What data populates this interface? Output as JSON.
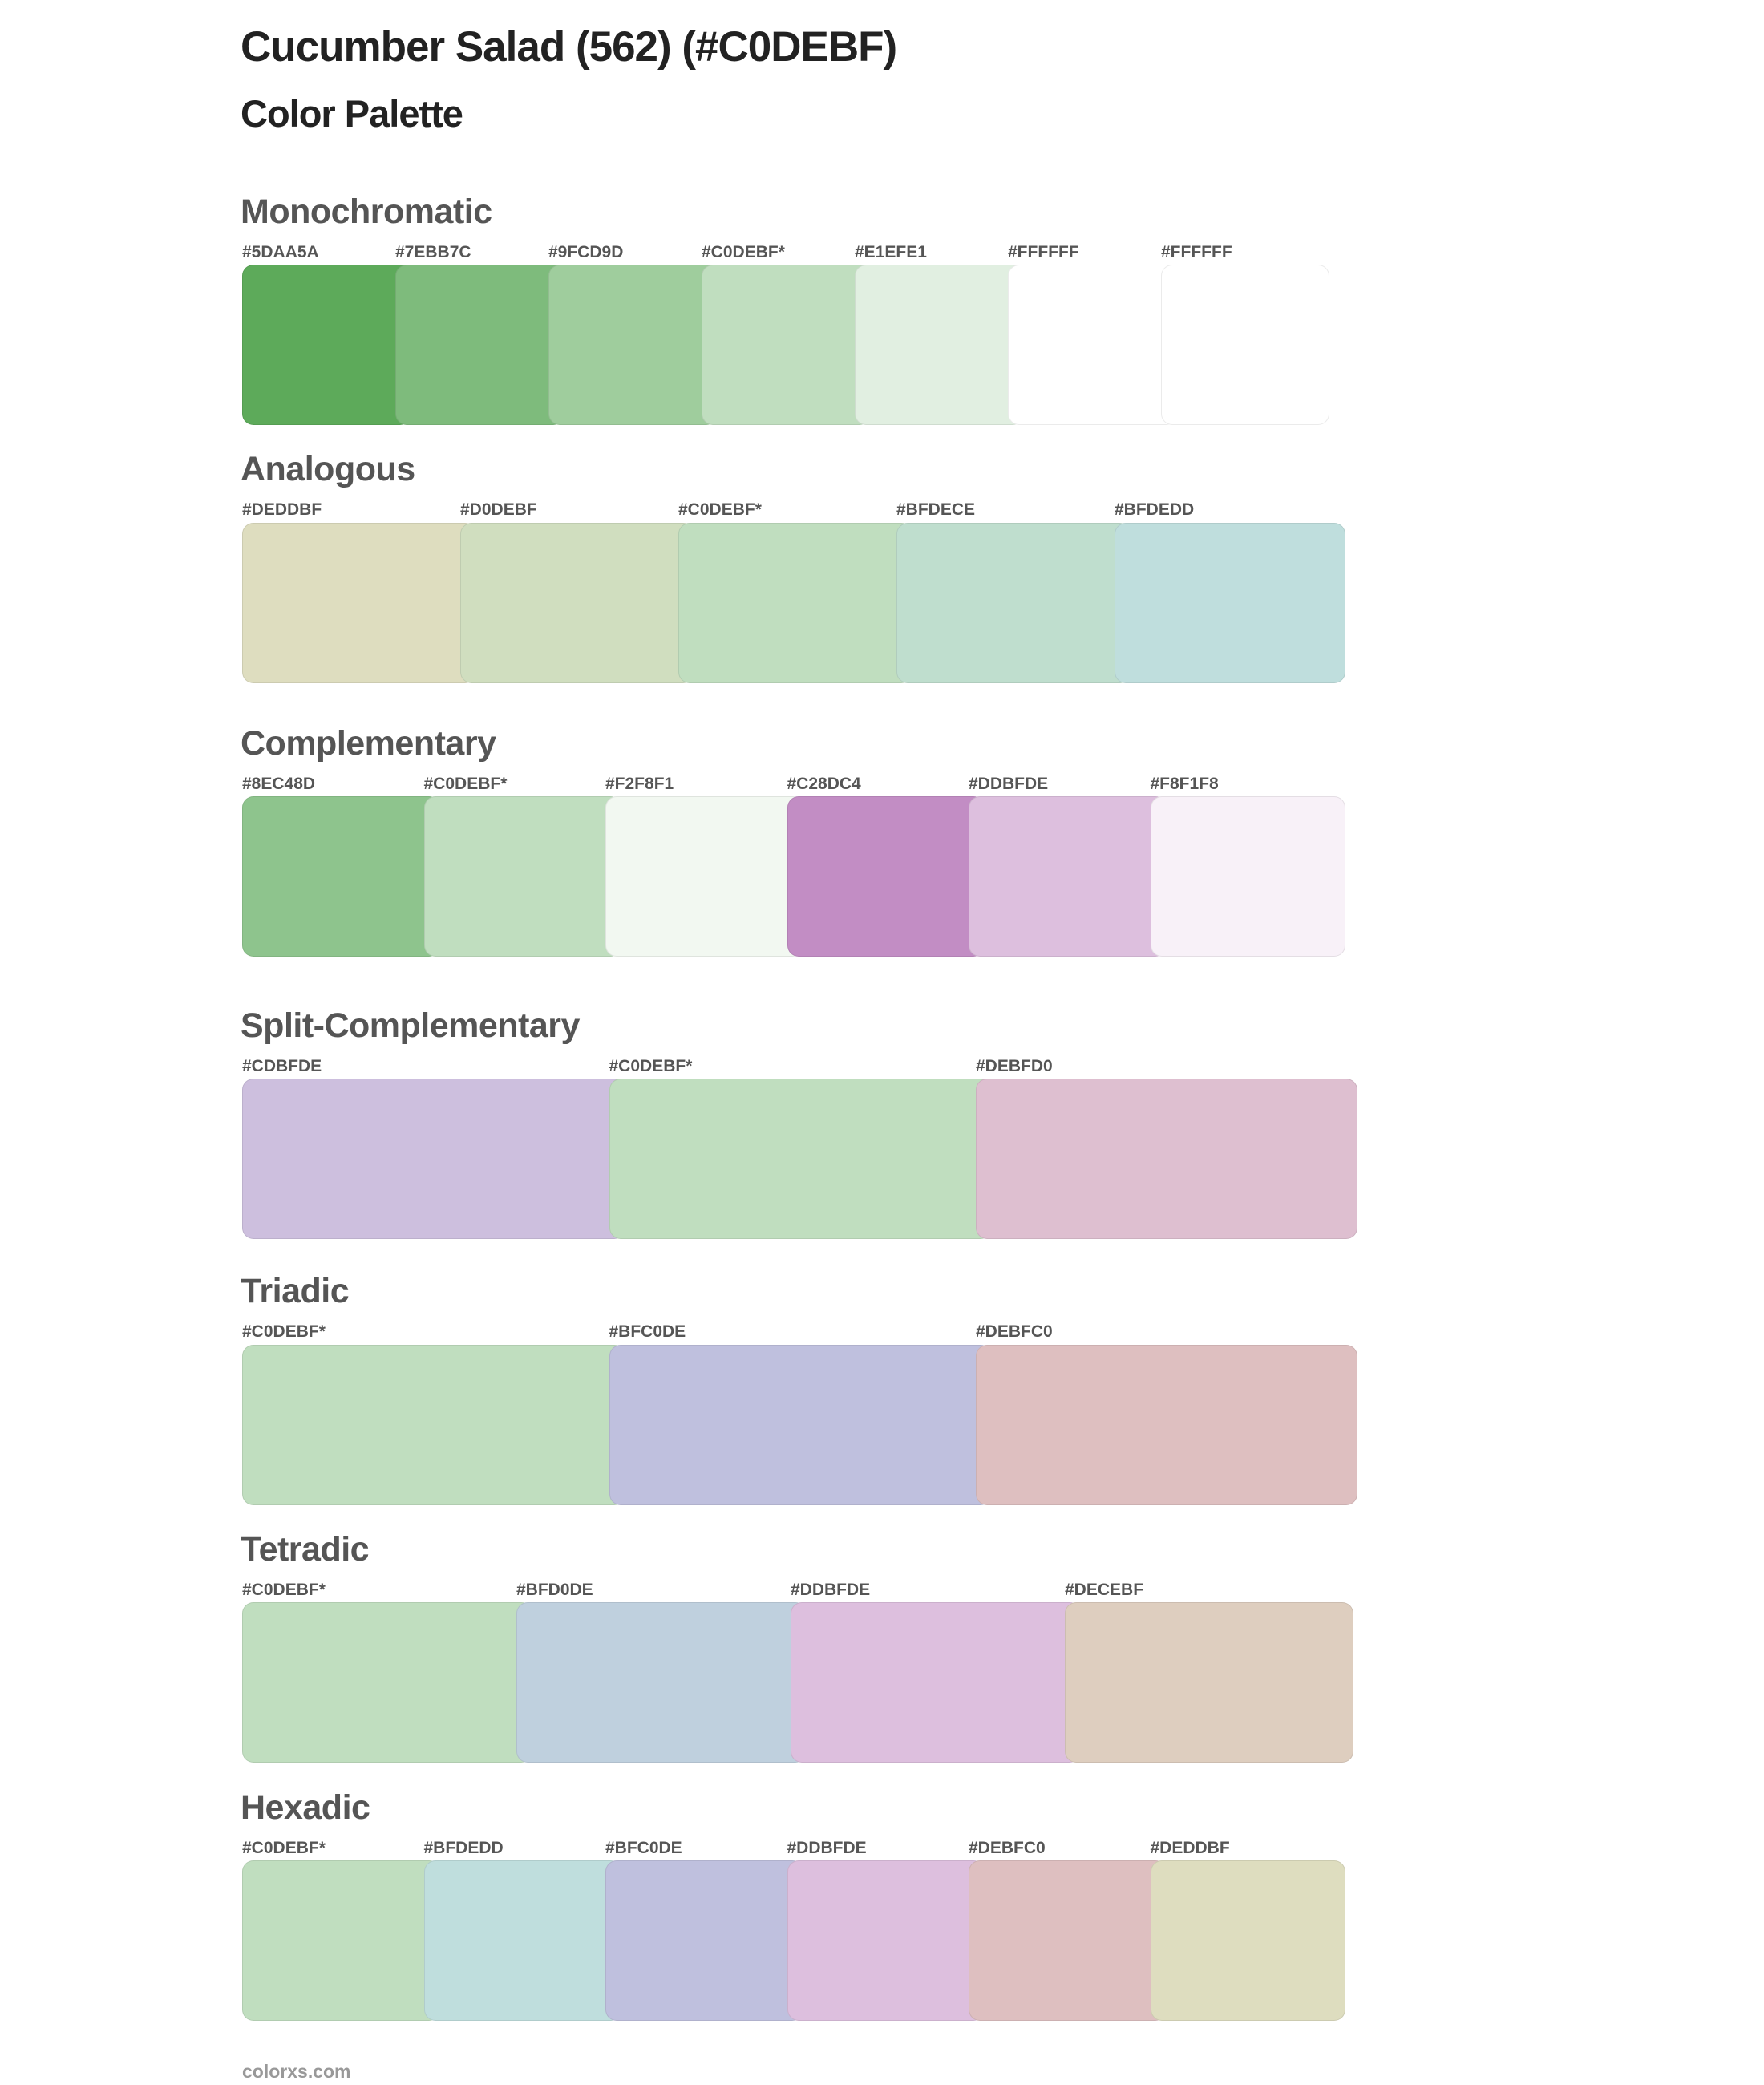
{
  "title": "Cucumber Salad (562) (#C0DEBF)",
  "subtitle": "Color Palette",
  "sections": [
    {
      "name": "Monochromatic",
      "colors": [
        {
          "label": "#5DAA5A",
          "hex": "#5DAA5A"
        },
        {
          "label": "#7EBB7C",
          "hex": "#7EBB7C"
        },
        {
          "label": "#9FCD9D",
          "hex": "#9FCD9D"
        },
        {
          "label": "#C0DEBF*",
          "hex": "#C0DEBF"
        },
        {
          "label": "#E1EFE1",
          "hex": "#E1EFE1"
        },
        {
          "label": "#FFFFFF",
          "hex": "#FFFFFF"
        },
        {
          "label": "#FFFFFF",
          "hex": "#FFFFFF"
        }
      ]
    },
    {
      "name": "Analogous",
      "colors": [
        {
          "label": "#DEDDBF",
          "hex": "#DEDDBF"
        },
        {
          "label": "#D0DEBF",
          "hex": "#D0DEBF"
        },
        {
          "label": "#C0DEBF*",
          "hex": "#C0DEBF"
        },
        {
          "label": "#BFDECE",
          "hex": "#BFDECE"
        },
        {
          "label": "#BFDEDD",
          "hex": "#BFDEDD"
        }
      ]
    },
    {
      "name": "Complementary",
      "colors": [
        {
          "label": "#8EC48D",
          "hex": "#8EC48D"
        },
        {
          "label": "#C0DEBF*",
          "hex": "#C0DEBF"
        },
        {
          "label": "#F2F8F1",
          "hex": "#F2F8F1"
        },
        {
          "label": "#C28DC4",
          "hex": "#C28DC4"
        },
        {
          "label": "#DDBFDE",
          "hex": "#DDBFDE"
        },
        {
          "label": "#F8F1F8",
          "hex": "#F8F1F8"
        }
      ]
    },
    {
      "name": "Split-Complementary",
      "colors": [
        {
          "label": "#CDBFDE",
          "hex": "#CDBFDE"
        },
        {
          "label": "#C0DEBF*",
          "hex": "#C0DEBF"
        },
        {
          "label": "#DEBFD0",
          "hex": "#DEBFD0"
        }
      ]
    },
    {
      "name": "Triadic",
      "colors": [
        {
          "label": "#C0DEBF*",
          "hex": "#C0DEBF"
        },
        {
          "label": "#BFC0DE",
          "hex": "#BFC0DE"
        },
        {
          "label": "#DEBFC0",
          "hex": "#DEBFC0"
        }
      ]
    },
    {
      "name": "Tetradic",
      "colors": [
        {
          "label": "#C0DEBF*",
          "hex": "#C0DEBF"
        },
        {
          "label": "#BFD0DE",
          "hex": "#BFD0DE"
        },
        {
          "label": "#DDBFDE",
          "hex": "#DDBFDE"
        },
        {
          "label": "#DECEBF",
          "hex": "#DECEBF"
        }
      ]
    },
    {
      "name": "Hexadic",
      "colors": [
        {
          "label": "#C0DEBF*",
          "hex": "#C0DEBF"
        },
        {
          "label": "#BFDEDD",
          "hex": "#BFDEDD"
        },
        {
          "label": "#BFC0DE",
          "hex": "#BFC0DE"
        },
        {
          "label": "#DDBFDE",
          "hex": "#DDBFDE"
        },
        {
          "label": "#DEBFC0",
          "hex": "#DEBFC0"
        },
        {
          "label": "#DEDDBF",
          "hex": "#DEDDBF"
        }
      ]
    }
  ],
  "footer": "colorxs.com"
}
